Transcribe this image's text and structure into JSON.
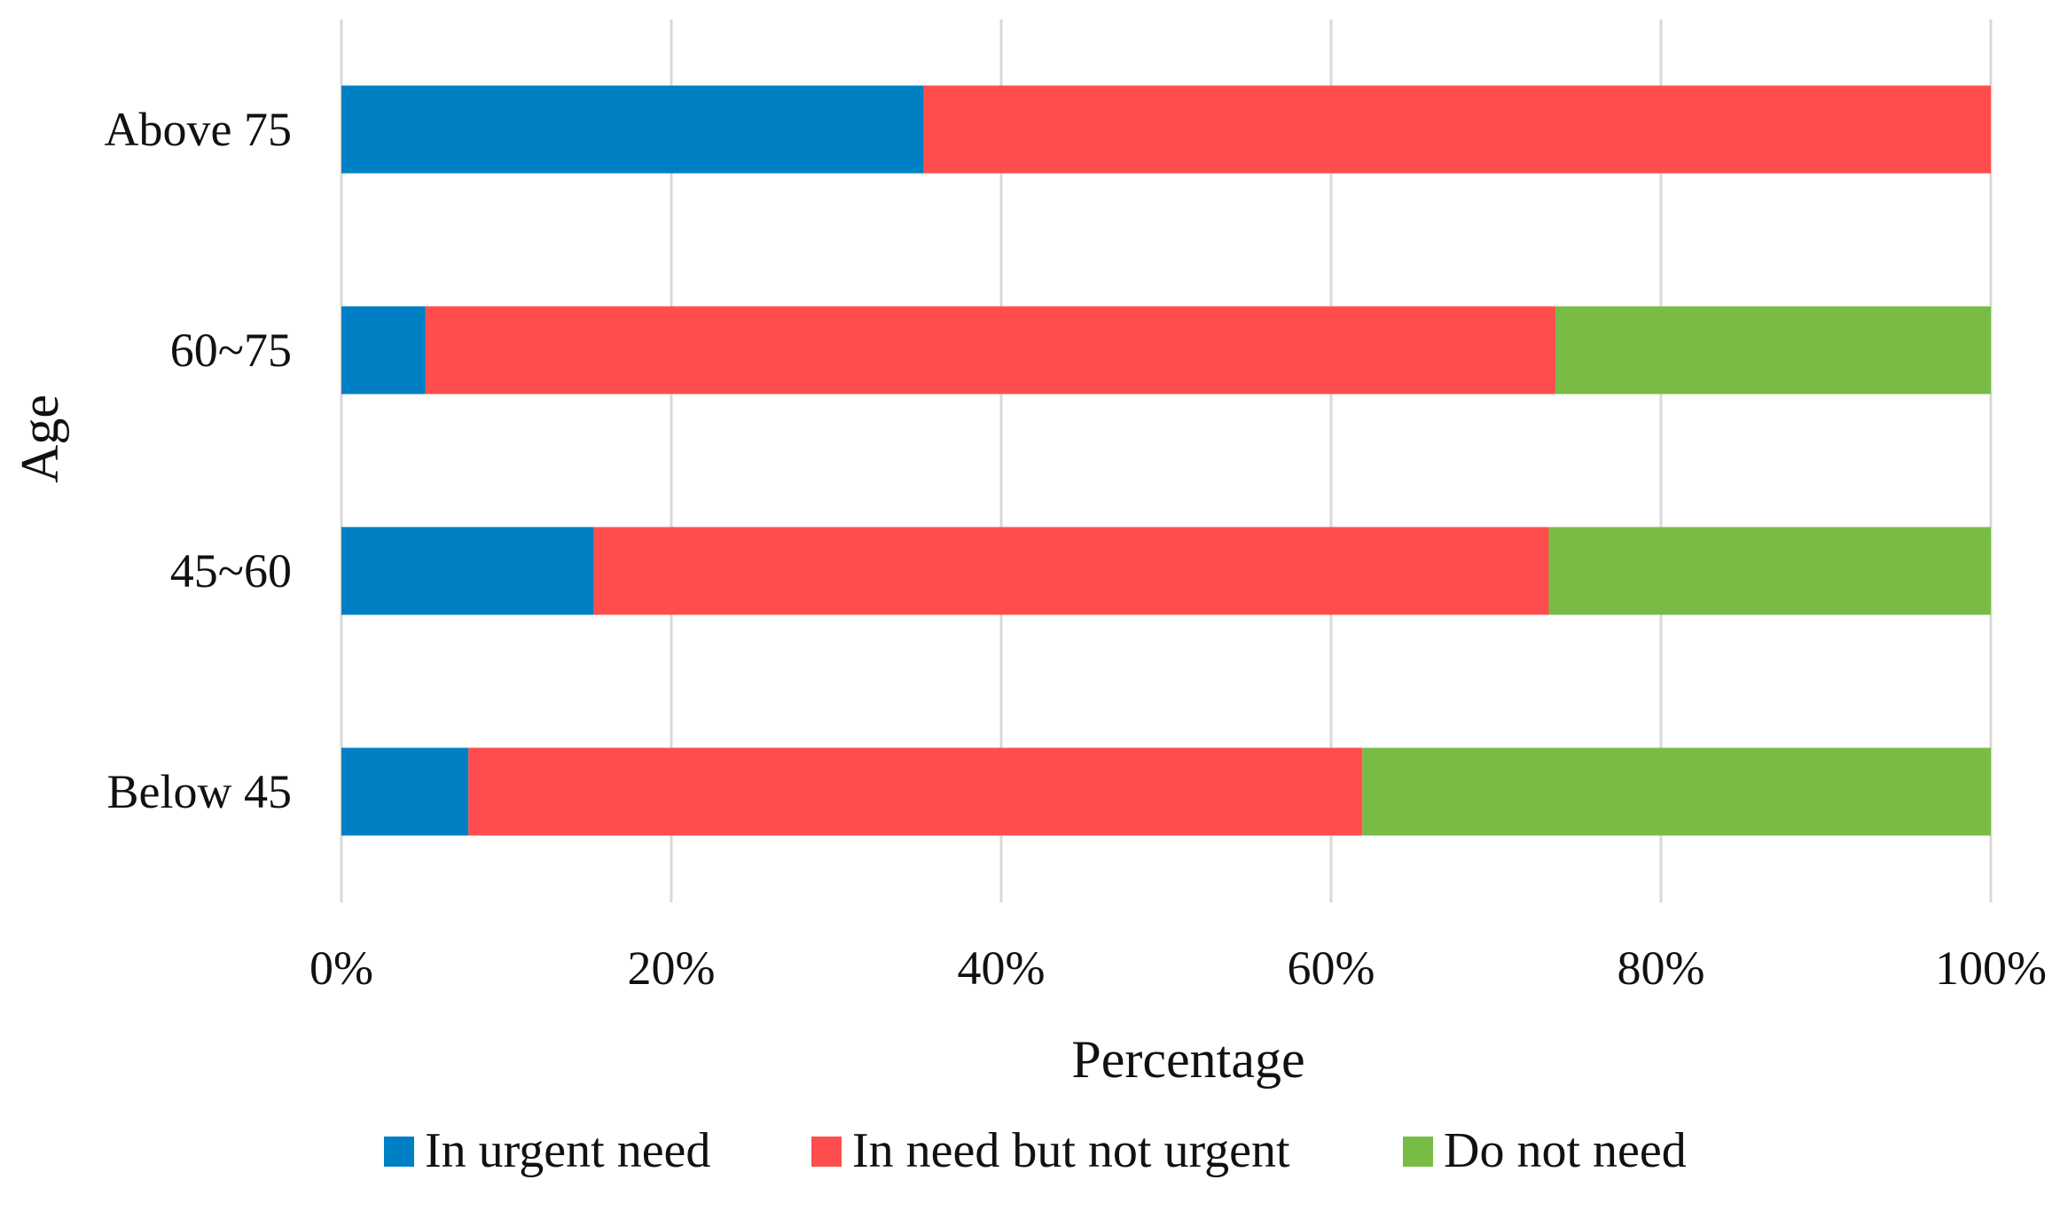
{
  "chart_data": {
    "type": "bar",
    "orientation": "horizontal",
    "stacked": true,
    "normalized_percent": true,
    "categories": [
      "Above 75",
      "60~75",
      "45~60",
      "Below 45"
    ],
    "series": [
      {
        "name": "In urgent need",
        "color": "#0080C4",
        "values": [
          35.3,
          5.1,
          15.3,
          7.7
        ]
      },
      {
        "name": "In need but not urgent",
        "color": "#FF4D4D",
        "values": [
          64.7,
          68.5,
          57.9,
          54.2
        ]
      },
      {
        "name": "Do not need",
        "color": "#78BC45",
        "values": [
          0.0,
          26.4,
          26.8,
          38.1
        ]
      }
    ],
    "title": "",
    "xlabel": "Percentage",
    "ylabel": "Age",
    "xlim": [
      0,
      100
    ],
    "x_ticks": [
      "0%",
      "20%",
      "40%",
      "60%",
      "80%",
      "100%"
    ],
    "grid": true,
    "grid_color": "#D9D9D9",
    "legend_position": "bottom"
  }
}
